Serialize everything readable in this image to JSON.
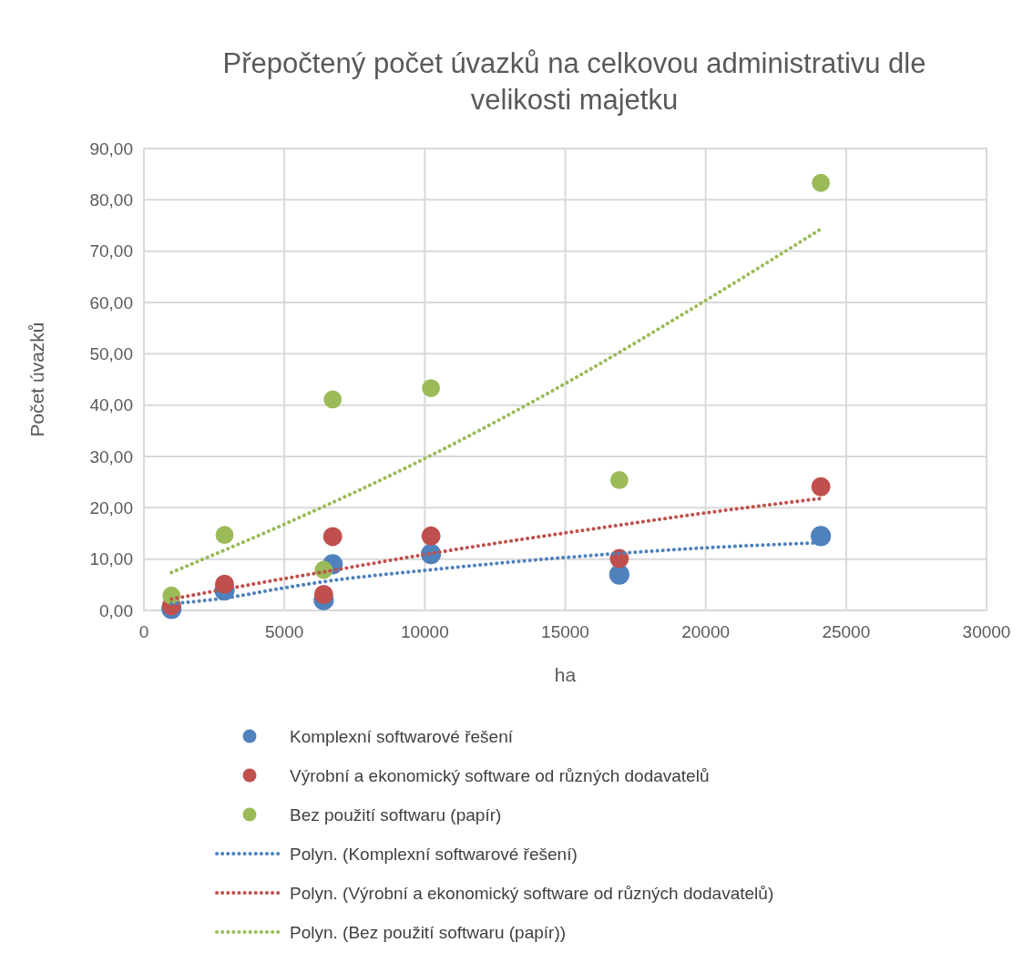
{
  "chart_data": {
    "type": "scatter",
    "title": "Přepočtený počet úvazků na celkovou administrativu dle velikosti majetku",
    "xlabel": "ha",
    "ylabel": "Počet úvazků",
    "xlim": [
      0,
      30000
    ],
    "xticks": [
      0,
      5000,
      10000,
      15000,
      20000,
      25000,
      30000
    ],
    "ylim": [
      0,
      90
    ],
    "yticks": [
      {
        "value": 0,
        "label": "0,00"
      },
      {
        "value": 10,
        "label": "10,00"
      },
      {
        "value": 20,
        "label": "20,00"
      },
      {
        "value": 30,
        "label": "30,00"
      },
      {
        "value": 40,
        "label": "40,00"
      },
      {
        "value": 50,
        "label": "50,00"
      },
      {
        "value": 60,
        "label": "60,00"
      },
      {
        "value": 70,
        "label": "70,00"
      },
      {
        "value": 80,
        "label": "80,00"
      },
      {
        "value": 90,
        "label": "90,00"
      }
    ],
    "grid": true,
    "legend": "bottom",
    "series": [
      {
        "name": "Komplexní softwarové řešení",
        "marker": "circle",
        "color": "#4f81bd",
        "x": [
          980,
          2870,
          6400,
          6720,
          10220,
          16925,
          24100
        ],
        "values": [
          0.3,
          3.9,
          2.0,
          9.0,
          11.0,
          7.0,
          14.5
        ]
      },
      {
        "name": "Výrobní a ekonomický software od různých dodavatelů",
        "marker": "circle",
        "color": "#c0504d",
        "x": [
          980,
          2870,
          6400,
          6720,
          10220,
          16925,
          24100
        ],
        "values": [
          0.9,
          5.1,
          3.1,
          14.4,
          14.5,
          10.1,
          24.1
        ]
      },
      {
        "name": "Bez použití softwaru (papír)",
        "marker": "circle",
        "color": "#9bbb59",
        "x": [
          980,
          2870,
          6400,
          6720,
          10220,
          16925,
          24100
        ],
        "values": [
          2.9,
          14.7,
          7.9,
          41.1,
          43.3,
          25.4,
          83.3
        ]
      },
      {
        "name": "Polyn. (Komplexní softwarové řešení)",
        "type": "line",
        "line_style": "dotted",
        "marker": "none",
        "color": "#4f81bd",
        "x": [
          980,
          2870,
          5000,
          6400,
          10000,
          16900,
          20000,
          24100
        ],
        "values": [
          1.3,
          2.4,
          4.4,
          5.6,
          7.8,
          11.1,
          12.2,
          13.2
        ]
      },
      {
        "name": "Polyn. (Výrobní a ekonomický software od různých dodavatelů)",
        "type": "line",
        "line_style": "dotted",
        "marker": "none",
        "color": "#c0504d",
        "x": [
          980,
          5000,
          6400,
          10000,
          16900,
          20000,
          24100
        ],
        "values": [
          2.2,
          6.2,
          7.5,
          10.9,
          16.6,
          19.0,
          21.8
        ]
      },
      {
        "name": "Polyn. (Bez použití softwaru (papír))",
        "type": "line",
        "line_style": "dotted",
        "marker": "none",
        "color": "#9bbb59",
        "x": [
          980,
          5000,
          10000,
          15000,
          20000,
          24100
        ],
        "values": [
          7.4,
          16.8,
          29.6,
          44.2,
          60.4,
          74.3
        ]
      }
    ]
  }
}
